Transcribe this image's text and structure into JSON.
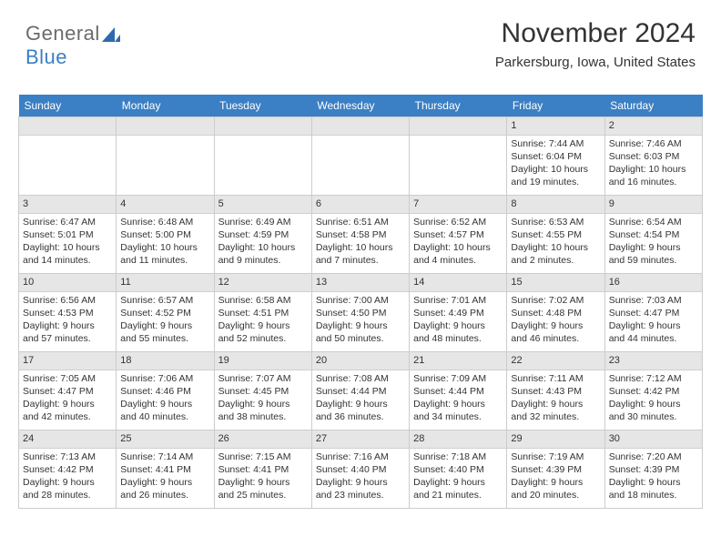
{
  "brand": {
    "part1": "General",
    "part2": "Blue"
  },
  "title": "November 2024",
  "location": "Parkersburg, Iowa, United States",
  "colors": {
    "header_bg": "#3b7fc4",
    "header_text": "#ffffff",
    "daynum_bg": "#e6e6e6",
    "border": "#cccccc",
    "text": "#333333",
    "background": "#ffffff"
  },
  "weekdays": [
    "Sunday",
    "Monday",
    "Tuesday",
    "Wednesday",
    "Thursday",
    "Friday",
    "Saturday"
  ],
  "blank_leading": 5,
  "days": [
    {
      "n": "1",
      "sunrise": "7:44 AM",
      "sunset": "6:04 PM",
      "daylight": "10 hours and 19 minutes."
    },
    {
      "n": "2",
      "sunrise": "7:46 AM",
      "sunset": "6:03 PM",
      "daylight": "10 hours and 16 minutes."
    },
    {
      "n": "3",
      "sunrise": "6:47 AM",
      "sunset": "5:01 PM",
      "daylight": "10 hours and 14 minutes."
    },
    {
      "n": "4",
      "sunrise": "6:48 AM",
      "sunset": "5:00 PM",
      "daylight": "10 hours and 11 minutes."
    },
    {
      "n": "5",
      "sunrise": "6:49 AM",
      "sunset": "4:59 PM",
      "daylight": "10 hours and 9 minutes."
    },
    {
      "n": "6",
      "sunrise": "6:51 AM",
      "sunset": "4:58 PM",
      "daylight": "10 hours and 7 minutes."
    },
    {
      "n": "7",
      "sunrise": "6:52 AM",
      "sunset": "4:57 PM",
      "daylight": "10 hours and 4 minutes."
    },
    {
      "n": "8",
      "sunrise": "6:53 AM",
      "sunset": "4:55 PM",
      "daylight": "10 hours and 2 minutes."
    },
    {
      "n": "9",
      "sunrise": "6:54 AM",
      "sunset": "4:54 PM",
      "daylight": "9 hours and 59 minutes."
    },
    {
      "n": "10",
      "sunrise": "6:56 AM",
      "sunset": "4:53 PM",
      "daylight": "9 hours and 57 minutes."
    },
    {
      "n": "11",
      "sunrise": "6:57 AM",
      "sunset": "4:52 PM",
      "daylight": "9 hours and 55 minutes."
    },
    {
      "n": "12",
      "sunrise": "6:58 AM",
      "sunset": "4:51 PM",
      "daylight": "9 hours and 52 minutes."
    },
    {
      "n": "13",
      "sunrise": "7:00 AM",
      "sunset": "4:50 PM",
      "daylight": "9 hours and 50 minutes."
    },
    {
      "n": "14",
      "sunrise": "7:01 AM",
      "sunset": "4:49 PM",
      "daylight": "9 hours and 48 minutes."
    },
    {
      "n": "15",
      "sunrise": "7:02 AM",
      "sunset": "4:48 PM",
      "daylight": "9 hours and 46 minutes."
    },
    {
      "n": "16",
      "sunrise": "7:03 AM",
      "sunset": "4:47 PM",
      "daylight": "9 hours and 44 minutes."
    },
    {
      "n": "17",
      "sunrise": "7:05 AM",
      "sunset": "4:47 PM",
      "daylight": "9 hours and 42 minutes."
    },
    {
      "n": "18",
      "sunrise": "7:06 AM",
      "sunset": "4:46 PM",
      "daylight": "9 hours and 40 minutes."
    },
    {
      "n": "19",
      "sunrise": "7:07 AM",
      "sunset": "4:45 PM",
      "daylight": "9 hours and 38 minutes."
    },
    {
      "n": "20",
      "sunrise": "7:08 AM",
      "sunset": "4:44 PM",
      "daylight": "9 hours and 36 minutes."
    },
    {
      "n": "21",
      "sunrise": "7:09 AM",
      "sunset": "4:44 PM",
      "daylight": "9 hours and 34 minutes."
    },
    {
      "n": "22",
      "sunrise": "7:11 AM",
      "sunset": "4:43 PM",
      "daylight": "9 hours and 32 minutes."
    },
    {
      "n": "23",
      "sunrise": "7:12 AM",
      "sunset": "4:42 PM",
      "daylight": "9 hours and 30 minutes."
    },
    {
      "n": "24",
      "sunrise": "7:13 AM",
      "sunset": "4:42 PM",
      "daylight": "9 hours and 28 minutes."
    },
    {
      "n": "25",
      "sunrise": "7:14 AM",
      "sunset": "4:41 PM",
      "daylight": "9 hours and 26 minutes."
    },
    {
      "n": "26",
      "sunrise": "7:15 AM",
      "sunset": "4:41 PM",
      "daylight": "9 hours and 25 minutes."
    },
    {
      "n": "27",
      "sunrise": "7:16 AM",
      "sunset": "4:40 PM",
      "daylight": "9 hours and 23 minutes."
    },
    {
      "n": "28",
      "sunrise": "7:18 AM",
      "sunset": "4:40 PM",
      "daylight": "9 hours and 21 minutes."
    },
    {
      "n": "29",
      "sunrise": "7:19 AM",
      "sunset": "4:39 PM",
      "daylight": "9 hours and 20 minutes."
    },
    {
      "n": "30",
      "sunrise": "7:20 AM",
      "sunset": "4:39 PM",
      "daylight": "9 hours and 18 minutes."
    }
  ],
  "labels": {
    "sunrise": "Sunrise:",
    "sunset": "Sunset:",
    "daylight": "Daylight:"
  }
}
